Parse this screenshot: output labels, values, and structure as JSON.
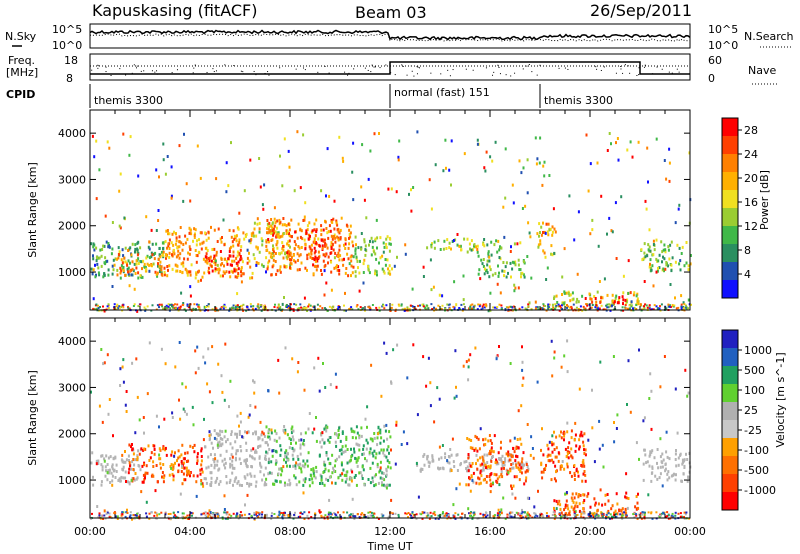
{
  "header": {
    "station": "Kapuskasing (fitACF)",
    "beam": "Beam 03",
    "date": "26/Sep/2011"
  },
  "noise_panel": {
    "left_label": "N.Sky",
    "right_label": "N.Search",
    "left_ticks": [
      "10^5",
      "10^0"
    ],
    "right_ticks": [
      "10^5",
      "10^0"
    ]
  },
  "freq_panel": {
    "left_label_top": "Freq.",
    "left_label_bottom": "[MHz]",
    "left_ticks": [
      "18",
      "8"
    ],
    "right_label": "Nave",
    "right_ticks": [
      "60",
      "0"
    ]
  },
  "cpid": {
    "label": "CPID",
    "segments": [
      {
        "name": "themis 3300",
        "start_hour": 0,
        "end_hour": 12
      },
      {
        "name": "normal (fast) 151",
        "start_hour": 12,
        "end_hour": 18
      },
      {
        "name": "themis 3300",
        "start_hour": 18,
        "end_hour": 24
      }
    ]
  },
  "colors": {
    "power_scale": [
      "#1010ff",
      "#2050b0",
      "#2a8f60",
      "#40b848",
      "#9acd32",
      "#f0e020",
      "#ffb000",
      "#ff8000",
      "#ff4000",
      "#ff0000"
    ],
    "velocity_scale": [
      "#2020c0",
      "#2060c0",
      "#20a060",
      "#60d030",
      "#b0b0b0",
      "#c8c8c8",
      "#ffa000",
      "#ff7000",
      "#ff4000",
      "#ff0000"
    ],
    "ground_scatter": "#b4b4b4"
  },
  "chart_data": [
    {
      "type": "heatmap",
      "title": "",
      "xlabel": "",
      "ylabel": "Slant Range [km]",
      "x_range": [
        0,
        24
      ],
      "y_range": [
        180,
        4500
      ],
      "y_ticks": [
        1000,
        2000,
        3000,
        4000
      ],
      "x_tick_labels": [
        "00:00",
        "04:00",
        "08:00",
        "12:00",
        "16:00",
        "20:00",
        "00:00"
      ],
      "colorbar": {
        "label": "Power [dB]",
        "ticks": [
          4,
          8,
          12,
          16,
          20,
          24,
          28
        ],
        "range": [
          0,
          30
        ]
      },
      "regions": [
        {
          "x": [
            0.0,
            3.0
          ],
          "y": [
            900,
            1700
          ],
          "level": 0.3
        },
        {
          "x": [
            1.0,
            3.5
          ],
          "y": [
            950,
            1500
          ],
          "level": 0.7
        },
        {
          "x": [
            3.0,
            6.5
          ],
          "y": [
            900,
            2000
          ],
          "level": 0.7
        },
        {
          "x": [
            4.5,
            6.0
          ],
          "y": [
            1000,
            1500
          ],
          "level": 0.92
        },
        {
          "x": [
            6.5,
            8.0
          ],
          "y": [
            1100,
            2100
          ],
          "level": 0.55
        },
        {
          "x": [
            7.0,
            10.5
          ],
          "y": [
            950,
            2200
          ],
          "level": 0.75
        },
        {
          "x": [
            8.5,
            10.0
          ],
          "y": [
            1300,
            2000
          ],
          "level": 0.85
        },
        {
          "x": [
            10.5,
            12.0
          ],
          "y": [
            900,
            1800
          ],
          "level": 0.45
        },
        {
          "x": [
            13.5,
            16.5
          ],
          "y": [
            1450,
            1750
          ],
          "level": 0.45
        },
        {
          "x": [
            15.5,
            17.5
          ],
          "y": [
            900,
            1400
          ],
          "level": 0.4
        },
        {
          "x": [
            17.8,
            18.6
          ],
          "y": [
            1400,
            2100
          ],
          "level": 0.6
        },
        {
          "x": [
            18.5,
            22.0
          ],
          "y": [
            300,
            600
          ],
          "level": 0.55
        },
        {
          "x": [
            19.5,
            21.5
          ],
          "y": [
            350,
            500
          ],
          "level": 0.9
        },
        {
          "x": [
            22.0,
            24.0
          ],
          "y": [
            1050,
            1700
          ],
          "level": 0.4
        }
      ]
    },
    {
      "type": "heatmap",
      "title": "",
      "xlabel": "Time UT",
      "ylabel": "Slant Range [km]",
      "x_range": [
        0,
        24
      ],
      "y_range": [
        180,
        4500
      ],
      "y_ticks": [
        1000,
        2000,
        3000,
        4000
      ],
      "x_tick_labels": [
        "00:00",
        "04:00",
        "08:00",
        "12:00",
        "16:00",
        "20:00",
        "00:00"
      ],
      "colorbar": {
        "label": "Velocity [m s^-1]",
        "ticks": [
          1000,
          500,
          100,
          25,
          -25,
          -100,
          -500,
          -1000
        ]
      },
      "regions": [
        {
          "x": [
            0.0,
            2.0
          ],
          "y": [
            900,
            1700
          ],
          "category": "ground"
        },
        {
          "x": [
            1.5,
            4.5
          ],
          "y": [
            950,
            1800
          ],
          "category": "negative"
        },
        {
          "x": [
            4.5,
            7.0
          ],
          "y": [
            900,
            2100
          ],
          "category": "ground"
        },
        {
          "x": [
            7.0,
            12.0
          ],
          "y": [
            900,
            2200
          ],
          "category": "positive"
        },
        {
          "x": [
            13.0,
            17.5
          ],
          "y": [
            1200,
            1600
          ],
          "category": "ground"
        },
        {
          "x": [
            15.0,
            17.5
          ],
          "y": [
            900,
            2000
          ],
          "category": "negative"
        },
        {
          "x": [
            18.0,
            19.8
          ],
          "y": [
            1000,
            2100
          ],
          "category": "negative"
        },
        {
          "x": [
            18.5,
            22.0
          ],
          "y": [
            250,
            750
          ],
          "category": "negative"
        },
        {
          "x": [
            22.0,
            24.0
          ],
          "y": [
            1000,
            1700
          ],
          "category": "ground"
        }
      ]
    }
  ]
}
